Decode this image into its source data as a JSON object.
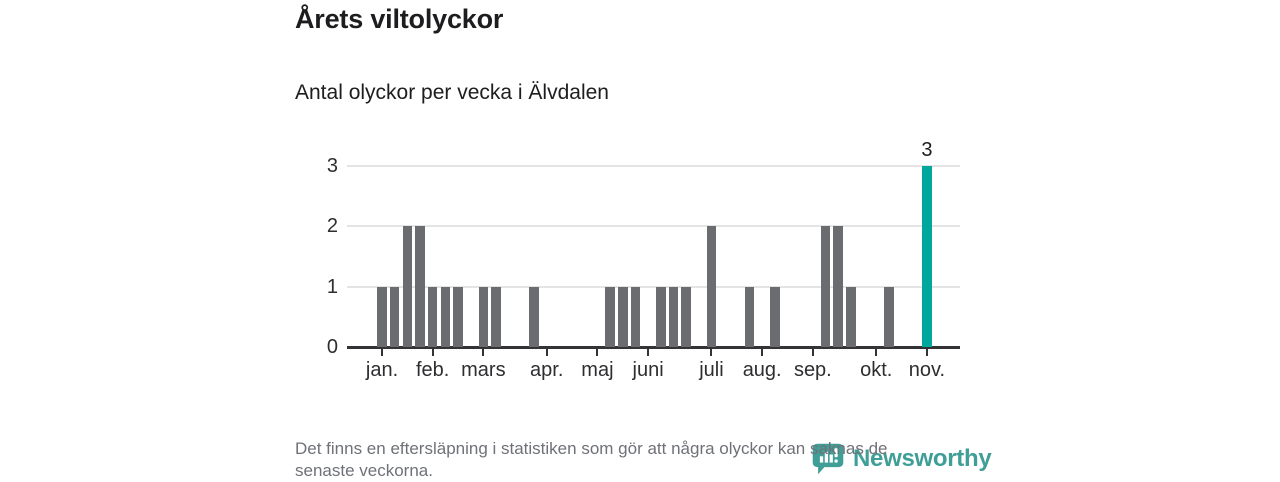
{
  "title": "Årets viltolyckor",
  "subtitle": "Antal olyckor per vecka i Älvdalen",
  "footer": {
    "line1": "Det finns en eftersläpning i statistiken som gör att några olyckor kan saknas de",
    "line2": "senaste veckorna."
  },
  "branding": {
    "wordmark": "Newsworthy",
    "logo_icon": "speech-bubble-with-bar-chart-and-exclamation",
    "brand_color": "#3f9e96"
  },
  "chart_data": {
    "type": "bar",
    "title": "Årets viltolyckor",
    "subtitle": "Antal olyckor per vecka i Älvdalen",
    "x_unit": "week",
    "num_weeks": 44,
    "values": [
      1,
      1,
      2,
      2,
      1,
      1,
      1,
      0,
      1,
      1,
      0,
      0,
      1,
      0,
      0,
      0,
      0,
      0,
      1,
      1,
      1,
      0,
      1,
      1,
      1,
      0,
      2,
      0,
      0,
      1,
      0,
      1,
      0,
      0,
      0,
      2,
      2,
      1,
      0,
      0,
      1,
      0,
      0,
      3
    ],
    "ylim": [
      0,
      3
    ],
    "y_ticks": [
      0,
      1,
      2,
      3
    ],
    "x_tick_labels": [
      "jan.",
      "feb.",
      "mars",
      "apr.",
      "maj",
      "juni",
      "juli",
      "aug.",
      "sep.",
      "okt.",
      "nov."
    ],
    "x_tick_week_index": [
      1,
      5,
      9,
      14,
      18,
      22,
      27,
      31,
      35,
      40,
      44
    ],
    "highlight": {
      "week_index": 44,
      "value": 3,
      "label": "3"
    },
    "colors": {
      "bar": "#6b6c70",
      "highlight_bar": "#00a79c",
      "axis": "#333336",
      "gridline": "#e4e4e5",
      "tick_text": "#2e2e31",
      "title_text": "#1d1d1f",
      "footer_text": "#6e7177"
    },
    "grid": "horizontal gridlines at y=1,2,3; dark baseline at y=0",
    "legend": "none"
  }
}
